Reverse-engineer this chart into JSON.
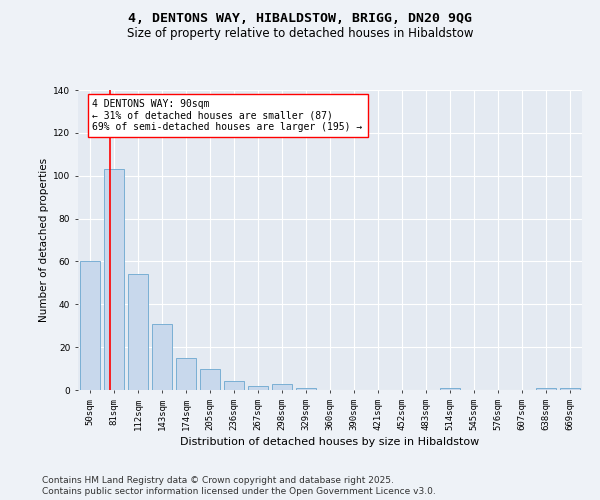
{
  "title1": "4, DENTONS WAY, HIBALDSTOW, BRIGG, DN20 9QG",
  "title2": "Size of property relative to detached houses in Hibaldstow",
  "xlabel": "Distribution of detached houses by size in Hibaldstow",
  "ylabel": "Number of detached properties",
  "categories": [
    "50sqm",
    "81sqm",
    "112sqm",
    "143sqm",
    "174sqm",
    "205sqm",
    "236sqm",
    "267sqm",
    "298sqm",
    "329sqm",
    "360sqm",
    "390sqm",
    "421sqm",
    "452sqm",
    "483sqm",
    "514sqm",
    "545sqm",
    "576sqm",
    "607sqm",
    "638sqm",
    "669sqm"
  ],
  "values": [
    60,
    103,
    54,
    31,
    15,
    10,
    4,
    2,
    3,
    1,
    0,
    0,
    0,
    0,
    0,
    1,
    0,
    0,
    0,
    1,
    1
  ],
  "bar_color": "#c8d8ec",
  "bar_edge_color": "#7aafd4",
  "red_line_index": 1,
  "annotation_text": "4 DENTONS WAY: 90sqm\n← 31% of detached houses are smaller (87)\n69% of semi-detached houses are larger (195) →",
  "ylim": [
    0,
    140
  ],
  "yticks": [
    0,
    20,
    40,
    60,
    80,
    100,
    120,
    140
  ],
  "footer1": "Contains HM Land Registry data © Crown copyright and database right 2025.",
  "footer2": "Contains public sector information licensed under the Open Government Licence v3.0.",
  "bg_color": "#eef2f7",
  "plot_bg_color": "#e4eaf2",
  "grid_color": "#ffffff",
  "title1_fontsize": 9.5,
  "title2_fontsize": 8.5,
  "tick_fontsize": 6.5,
  "ylabel_fontsize": 7.5,
  "xlabel_fontsize": 8,
  "annotation_fontsize": 7,
  "footer_fontsize": 6.5
}
